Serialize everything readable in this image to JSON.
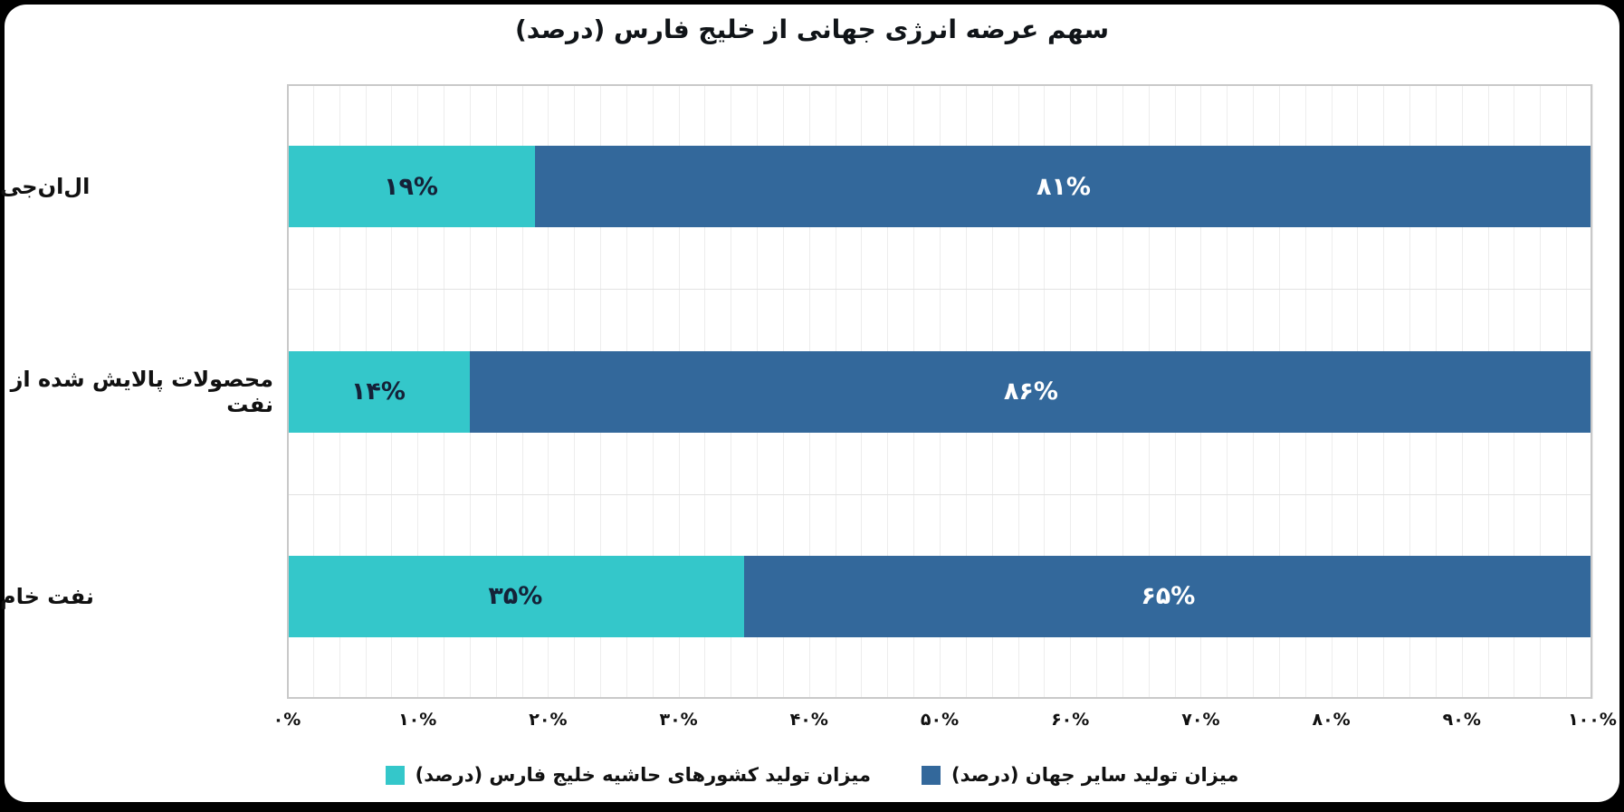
{
  "page": {
    "background_color": "#000000",
    "card_color": "#ffffff",
    "plot_border_color": "#c9c9c9",
    "gridline_color": "#ededed"
  },
  "chart_data": {
    "type": "bar",
    "orientation": "horizontal",
    "stacked": true,
    "title": "سهم عرضه انرژی جهانی از خلیج فارس (درصد)",
    "categories": [
      "ال‌ان‌جی",
      "محصولات پالایش شده از نفت",
      "نفت خام"
    ],
    "series": [
      {
        "name": "میزان تولید کشورهای حاشیه خلیج فارس (درصد)",
        "color": "#34c7ca",
        "values": [
          19,
          14,
          35
        ],
        "value_labels": [
          "۱۹%",
          "۱۴%",
          "۳۵%"
        ],
        "label_color": "#152238"
      },
      {
        "name": "میزان تولید سایر جهان (درصد)",
        "color": "#33689b",
        "values": [
          81,
          86,
          65
        ],
        "value_labels": [
          "۸۱%",
          "۸۶%",
          "۶۵%"
        ],
        "label_color": "#ffffff"
      }
    ],
    "xlim": [
      0,
      100
    ],
    "x_ticks": [
      {
        "value": 0,
        "label": "۰%"
      },
      {
        "value": 10,
        "label": "۱۰%"
      },
      {
        "value": 20,
        "label": "۲۰%"
      },
      {
        "value": 30,
        "label": "۳۰%"
      },
      {
        "value": 40,
        "label": "۴۰%"
      },
      {
        "value": 50,
        "label": "۵۰%"
      },
      {
        "value": 60,
        "label": "۶۰%"
      },
      {
        "value": 70,
        "label": "۷۰%"
      },
      {
        "value": 80,
        "label": "۸۰%"
      },
      {
        "value": 90,
        "label": "۹۰%"
      },
      {
        "value": 100,
        "label": "۱۰۰%"
      }
    ],
    "grid": {
      "minor_step_percent": 2,
      "grid_on": true
    },
    "legend_position": "bottom"
  }
}
